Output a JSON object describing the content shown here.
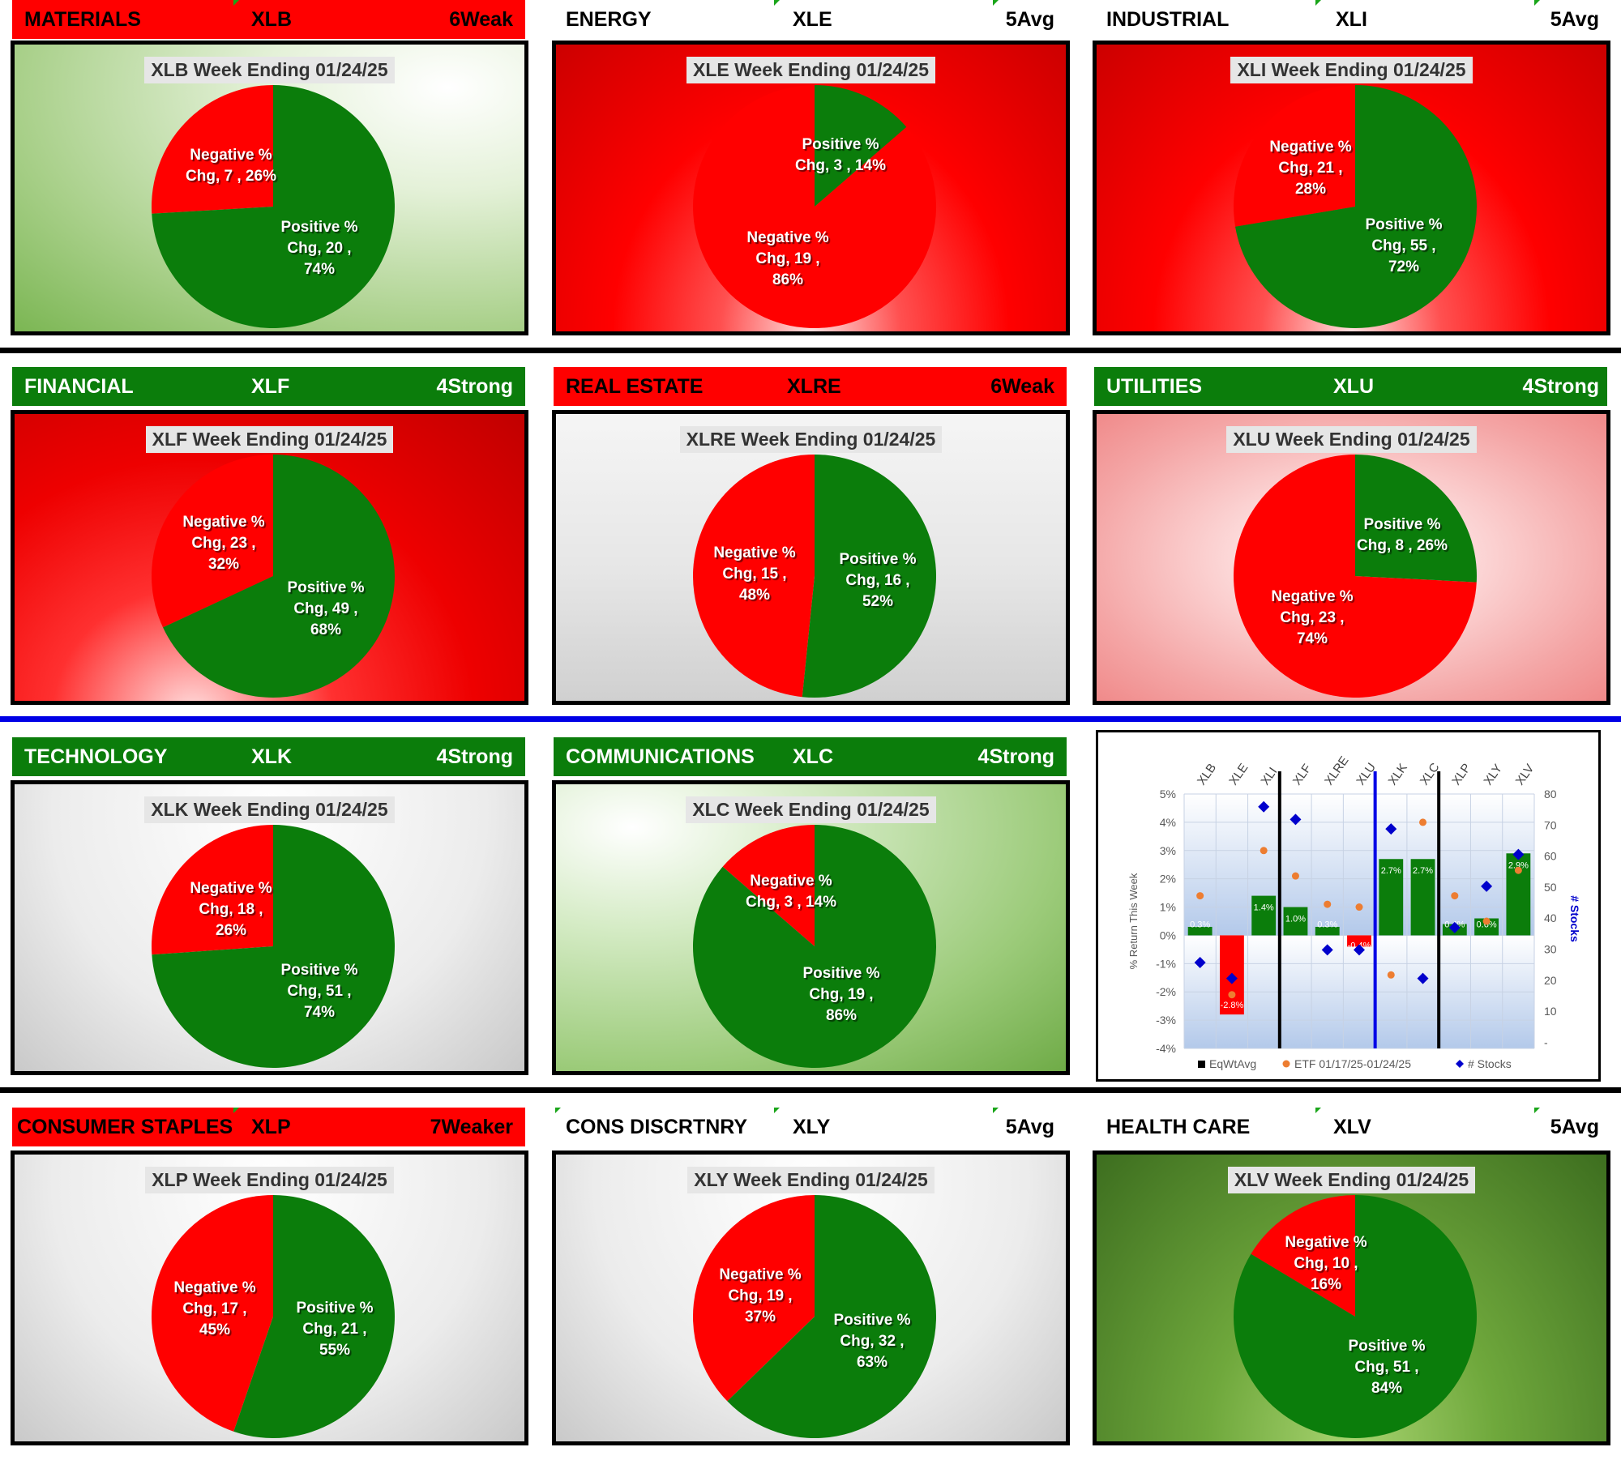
{
  "panels": [
    {
      "key": "xlb",
      "sector": "MATERIALS",
      "ticker": "XLB",
      "rank": "6Weak",
      "header_style": "red",
      "title": "XLB Week Ending 01/24/25",
      "neg_label": "Negative %",
      "neg_line2": "Chg,  7 , 26%",
      "neg_line3": "",
      "pos_label": "Positive %",
      "pos_line2": "Chg,  20 ,",
      "pos_line3": "74%",
      "neg_count": 7,
      "pos_count": 20
    },
    {
      "key": "xle",
      "sector": "ENERGY",
      "ticker": "XLE",
      "rank": "5Avg",
      "header_style": "plain",
      "title": "XLE Week Ending 01/24/25",
      "neg_label": "Negative %",
      "neg_line2": "Chg,  19 ,",
      "neg_line3": "86%",
      "pos_label": "Positive %",
      "pos_line2": "Chg,  3 , 14%",
      "pos_line3": "",
      "neg_count": 19,
      "pos_count": 3
    },
    {
      "key": "xli",
      "sector": "INDUSTRIAL",
      "ticker": "XLI",
      "rank": "5Avg",
      "header_style": "plain",
      "title": "XLI Week Ending 01/24/25",
      "neg_label": "Negative %",
      "neg_line2": "Chg,  21 ,",
      "neg_line3": "28%",
      "pos_label": "Positive %",
      "pos_line2": "Chg,  55 ,",
      "pos_line3": "72%",
      "neg_count": 21,
      "pos_count": 55
    },
    {
      "key": "xlf",
      "sector": "FINANCIAL",
      "ticker": "XLF",
      "rank": "4Strong",
      "header_style": "green",
      "title": "XLF Week Ending 01/24/25",
      "neg_label": "Negative %",
      "neg_line2": "Chg,  23 ,",
      "neg_line3": "32%",
      "pos_label": "Positive %",
      "pos_line2": "Chg,  49 ,",
      "pos_line3": "68%",
      "neg_count": 23,
      "pos_count": 49
    },
    {
      "key": "xlre",
      "sector": "REAL ESTATE",
      "ticker": "XLRE",
      "rank": "6Weak",
      "header_style": "red",
      "title": "XLRE Week Ending 01/24/25",
      "neg_label": "Negative %",
      "neg_line2": "Chg,  15 ,",
      "neg_line3": "48%",
      "pos_label": "Positive %",
      "pos_line2": "Chg,  16 ,",
      "pos_line3": "52%",
      "neg_count": 15,
      "pos_count": 16
    },
    {
      "key": "xlu",
      "sector": "UTILITIES",
      "ticker": "XLU",
      "rank": "4Strong",
      "header_style": "green",
      "title": "XLU Week Ending 01/24/25",
      "neg_label": "Negative %",
      "neg_line2": "Chg,  23 ,",
      "neg_line3": "74%",
      "pos_label": "Positive %",
      "pos_line2": "Chg,  8 , 26%",
      "pos_line3": "",
      "neg_count": 23,
      "pos_count": 8
    },
    {
      "key": "xlk",
      "sector": "TECHNOLOGY",
      "ticker": "XLK",
      "rank": "4Strong",
      "header_style": "green",
      "title": "XLK Week Ending 01/24/25",
      "neg_label": "Negative %",
      "neg_line2": "Chg,  18 ,",
      "neg_line3": "26%",
      "pos_label": "Positive %",
      "pos_line2": "Chg,  51 ,",
      "pos_line3": "74%",
      "neg_count": 18,
      "pos_count": 51
    },
    {
      "key": "xlc",
      "sector": "COMMUNICATIONS",
      "ticker": "XLC",
      "rank": "4Strong",
      "header_style": "green",
      "title": "XLC Week Ending 01/24/25",
      "neg_label": "Negative %",
      "neg_line2": "Chg,  3 , 14%",
      "neg_line3": "",
      "pos_label": "Positive %",
      "pos_line2": "Chg,  19 ,",
      "pos_line3": "86%",
      "neg_count": 3,
      "pos_count": 19
    },
    {
      "key": "xlp",
      "sector": "CONSUMER STAPLES",
      "ticker": "XLP",
      "rank": "7Weaker",
      "header_style": "red",
      "title": "XLP Week Ending 01/24/25",
      "neg_label": "Negative %",
      "neg_line2": "Chg,  17 ,",
      "neg_line3": "45%",
      "pos_label": "Positive %",
      "pos_line2": "Chg,  21 ,",
      "pos_line3": "55%",
      "neg_count": 17,
      "pos_count": 21
    },
    {
      "key": "xly",
      "sector": "CONS DISCRTNRY",
      "ticker": "XLY",
      "rank": "5Avg",
      "header_style": "plain",
      "title": "XLY Week Ending 01/24/25",
      "neg_label": "Negative %",
      "neg_line2": "Chg,  19 ,",
      "neg_line3": "37%",
      "pos_label": "Positive %",
      "pos_line2": "Chg,  32 ,",
      "pos_line3": "63%",
      "neg_count": 19,
      "pos_count": 32
    },
    {
      "key": "xlv",
      "sector": "HEALTH CARE",
      "ticker": "XLV",
      "rank": "5Avg",
      "header_style": "plain",
      "title": "XLV Week Ending 01/24/25",
      "neg_label": "Negative %",
      "neg_line2": "Chg,  10 ,",
      "neg_line3": "16%",
      "pos_label": "Positive %",
      "pos_line2": "Chg,  51 ,",
      "pos_line3": "84%",
      "neg_count": 10,
      "pos_count": 51
    }
  ],
  "colors": {
    "positive": "#0b7d0b",
    "negative": "#ff0000",
    "etf_marker": "#ed7d31",
    "stocks_marker": "#0000cc",
    "bar_pos": "#0b7d0b",
    "bar_neg": "#ff0000",
    "separator_blue": "#0000e6"
  },
  "chart_data": [
    {
      "type": "pie",
      "title": "XLB Week Ending 01/24/25",
      "categories": [
        "Negative % Chg",
        "Positive % Chg"
      ],
      "values": [
        7,
        20
      ],
      "percents": [
        26,
        74
      ]
    },
    {
      "type": "pie",
      "title": "XLE Week Ending 01/24/25",
      "categories": [
        "Negative % Chg",
        "Positive % Chg"
      ],
      "values": [
        19,
        3
      ],
      "percents": [
        86,
        14
      ]
    },
    {
      "type": "pie",
      "title": "XLI Week Ending 01/24/25",
      "categories": [
        "Negative % Chg",
        "Positive % Chg"
      ],
      "values": [
        21,
        55
      ],
      "percents": [
        28,
        72
      ]
    },
    {
      "type": "pie",
      "title": "XLF Week Ending 01/24/25",
      "categories": [
        "Negative % Chg",
        "Positive % Chg"
      ],
      "values": [
        23,
        49
      ],
      "percents": [
        32,
        68
      ]
    },
    {
      "type": "pie",
      "title": "XLRE Week Ending 01/24/25",
      "categories": [
        "Negative % Chg",
        "Positive % Chg"
      ],
      "values": [
        15,
        16
      ],
      "percents": [
        48,
        52
      ]
    },
    {
      "type": "pie",
      "title": "XLU Week Ending 01/24/25",
      "categories": [
        "Negative % Chg",
        "Positive % Chg"
      ],
      "values": [
        23,
        8
      ],
      "percents": [
        74,
        26
      ]
    },
    {
      "type": "pie",
      "title": "XLK Week Ending 01/24/25",
      "categories": [
        "Negative % Chg",
        "Positive % Chg"
      ],
      "values": [
        18,
        51
      ],
      "percents": [
        26,
        74
      ]
    },
    {
      "type": "pie",
      "title": "XLC Week Ending 01/24/25",
      "categories": [
        "Negative % Chg",
        "Positive % Chg"
      ],
      "values": [
        3,
        19
      ],
      "percents": [
        14,
        86
      ]
    },
    {
      "type": "pie",
      "title": "XLP Week Ending 01/24/25",
      "categories": [
        "Negative % Chg",
        "Positive % Chg"
      ],
      "values": [
        17,
        21
      ],
      "percents": [
        45,
        55
      ]
    },
    {
      "type": "pie",
      "title": "XLY Week Ending 01/24/25",
      "categories": [
        "Negative % Chg",
        "Positive % Chg"
      ],
      "values": [
        19,
        32
      ],
      "percents": [
        37,
        63
      ]
    },
    {
      "type": "pie",
      "title": "XLV Week Ending 01/24/25",
      "categories": [
        "Negative % Chg",
        "Positive % Chg"
      ],
      "values": [
        10,
        51
      ],
      "percents": [
        16,
        84
      ]
    },
    {
      "type": "bar",
      "categories": [
        "XLB",
        "XLE",
        "XLI",
        "XLF",
        "XLRE",
        "XLU",
        "XLK",
        "XLC",
        "XLP",
        "XLY",
        "XLV"
      ],
      "ylabel": "% Return This Week",
      "y2label": "# Stocks",
      "ylim": [
        -4,
        5
      ],
      "y2lim": [
        0,
        80
      ],
      "yticks": [
        "5%",
        "4%",
        "3%",
        "2%",
        "1%",
        "0%",
        "-1%",
        "-2%",
        "-3%",
        "-4%"
      ],
      "y2ticks": [
        "80",
        "70",
        "60",
        "50",
        "40",
        "30",
        "20",
        "10",
        "-"
      ],
      "series": [
        {
          "name": "EqWtAvg",
          "values": [
            0.3,
            -2.8,
            1.4,
            1.0,
            0.3,
            -0.4,
            2.7,
            2.7,
            0.4,
            0.6,
            2.9
          ],
          "labels": [
            "0.3%",
            "-2.8%",
            "1.4%",
            "1.0%",
            "0.3%",
            "-0.4%",
            "2.7%",
            "2.7%",
            "0.4%",
            "0.6%",
            "2.9%"
          ]
        },
        {
          "name": "ETF 01/17/25-01/24/25",
          "values": [
            1.4,
            -2.1,
            3.0,
            2.1,
            1.1,
            1.0,
            -1.4,
            4.0,
            1.4,
            0.5,
            2.3
          ]
        },
        {
          "name": "# Stocks",
          "axis": "secondary",
          "values": [
            27,
            22,
            76,
            72,
            31,
            31,
            69,
            22,
            38,
            51,
            61
          ]
        }
      ],
      "group_separators_after": [
        "XLI",
        "XLU",
        "XLC"
      ],
      "legend": [
        "EqWtAvg",
        "ETF 01/17/25-01/24/25",
        "# Stocks"
      ],
      "legend_position": "bottom"
    }
  ]
}
